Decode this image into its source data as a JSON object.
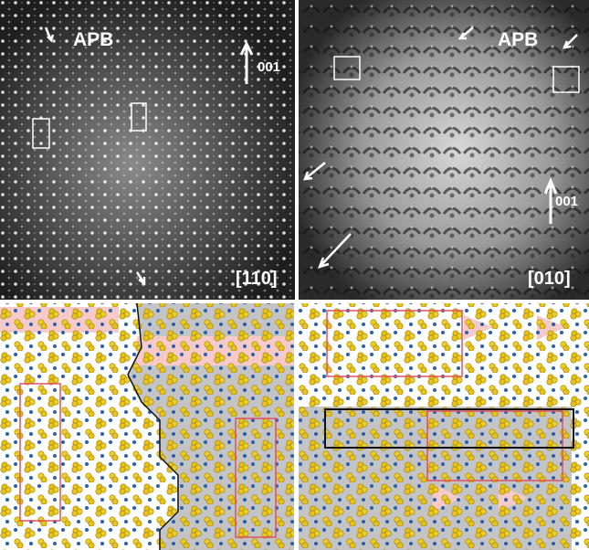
{
  "panels": {
    "top_left": {
      "apb": "APB",
      "direction": "001",
      "zone_axis": "[110]"
    },
    "top_right": {
      "apb": "APB",
      "direction": "001",
      "zone_axis": "[010]"
    }
  }
}
